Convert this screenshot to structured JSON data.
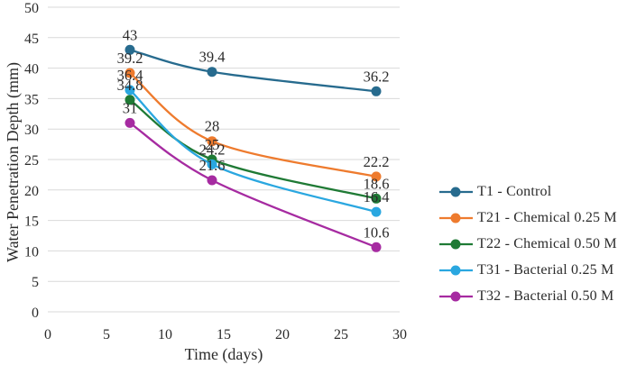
{
  "figure": {
    "background_color": "#ffffff",
    "gridline_color": "#d9d9d9",
    "text_color": "#2b2b2b"
  },
  "chart_data": {
    "type": "line",
    "title": "",
    "xlabel": "Time (days)",
    "ylabel": "Water Penetration Depth (mm)",
    "x": [
      7,
      14,
      28
    ],
    "xlim": [
      0,
      30
    ],
    "ylim": [
      0,
      50
    ],
    "x_ticks": [
      0,
      5,
      10,
      15,
      20,
      25,
      30
    ],
    "y_ticks": [
      0,
      5,
      10,
      15,
      20,
      25,
      30,
      35,
      40,
      45,
      50
    ],
    "grid": "horizontal",
    "legend_position": "right",
    "marker": "circle",
    "line_style": "smooth",
    "series": [
      {
        "name": "T1 - Control",
        "color": "#276b8e",
        "values": [
          43,
          39.4,
          36.2
        ],
        "point_labels": [
          "43",
          "39.4",
          "36.2"
        ]
      },
      {
        "name": "T21 - Chemical 0.25 M",
        "color": "#ee7b2e",
        "values": [
          39.2,
          28,
          22.2
        ],
        "point_labels": [
          "39.2",
          "28",
          "22.2"
        ]
      },
      {
        "name": "T22 - Chemical 0.50 M",
        "color": "#1f7a35",
        "values": [
          34.8,
          25,
          18.6
        ],
        "point_labels": [
          "34.8",
          "25",
          "18.6"
        ]
      },
      {
        "name": "T31 - Bacterial 0.25 M",
        "color": "#2aa7e0",
        "values": [
          36.4,
          24.2,
          16.4
        ],
        "point_labels": [
          "36.4",
          "24.2",
          "16.4"
        ]
      },
      {
        "name": "T32 - Bacterial 0.50 M",
        "color": "#a62ba1",
        "values": [
          31,
          21.6,
          10.6
        ],
        "point_labels": [
          "31",
          "21.6",
          "10.6"
        ]
      }
    ]
  }
}
